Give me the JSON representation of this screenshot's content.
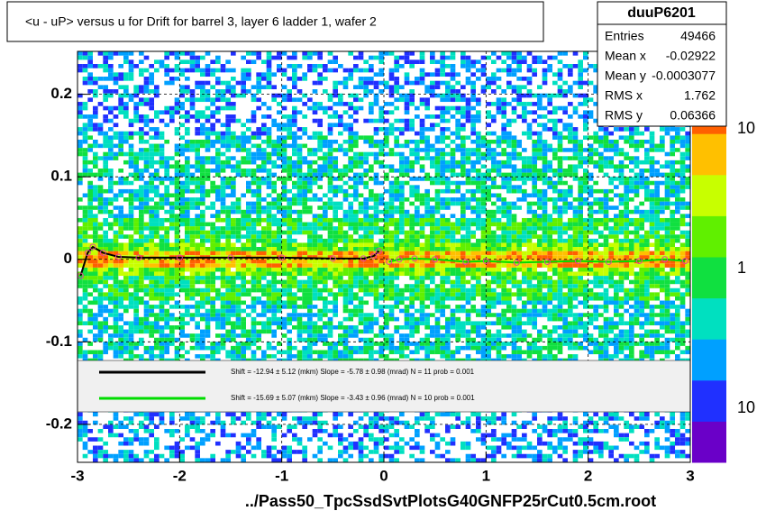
{
  "chart_data": {
    "type": "heatmap",
    "title": "<u - uP>       versus   u for Drift for barrel 3, layer 6 ladder 1, wafer 2",
    "x_label": "../Pass50_TpcSsdSvtPlotsG40GNFP25rCut0.5cm.root",
    "xlim": [
      -3,
      3
    ],
    "xticks": [
      -3,
      -2,
      -1,
      0,
      1,
      2,
      3
    ],
    "ylim": [
      -0.246,
      0.252
    ],
    "yticks": [
      -0.2,
      -0.1,
      0,
      0.1,
      0.2
    ],
    "grid": true,
    "stats": {
      "name": "duuP6201",
      "rows": [
        [
          "Entries",
          "49466"
        ],
        [
          "Mean x",
          "-0.02922"
        ],
        [
          "Mean y",
          "-0.0003077"
        ],
        [
          "RMS x",
          "1.762"
        ],
        [
          "RMS y",
          "0.06366"
        ]
      ]
    },
    "colorbar_labels": [
      "10",
      "1",
      "10"
    ],
    "heat": {
      "y_edges": [
        -0.246,
        -0.15,
        -0.05,
        -0.02,
        -0.01,
        0,
        0.01,
        0.02,
        0.05,
        0.15,
        0.252
      ],
      "levels": [
        2,
        3,
        4,
        5,
        7,
        7,
        5,
        4,
        3,
        2
      ]
    },
    "series": [
      {
        "name": "Shift =   -12.94 ± 5.12 (mkm) Slope =    -5.78 ± 0.98 (mrad)  N = 11 prob = 0.001",
        "color": "#000000",
        "x": [
          -2.97,
          -2.9,
          -2.85,
          -2.75,
          -2.6,
          -2.4,
          -2.0,
          -1.5,
          -1.0,
          -0.5,
          -0.2,
          -0.1,
          -0.05
        ],
        "values": [
          -0.02,
          0.008,
          0.015,
          0.008,
          0.003,
          0.002,
          0.002,
          0.002,
          0.002,
          0.001,
          0.001,
          0.004,
          0.01
        ]
      },
      {
        "name": "Shift =   -15.69 ± 5.07 (mkm) Slope =    -3.43 ± 0.96 (mrad)  N = 10 prob = 0.001",
        "color": "#00dd00",
        "x": [
          0.05,
          0.15,
          0.3,
          0.5,
          0.8,
          1.0,
          1.3,
          1.6,
          1.9,
          2.2,
          2.5,
          2.75,
          2.95
        ],
        "values": [
          -0.003,
          0.0,
          0.001,
          0.0,
          -0.003,
          -0.002,
          -0.004,
          -0.003,
          -0.002,
          -0.003,
          -0.002,
          0.0,
          -0.002
        ]
      }
    ]
  }
}
